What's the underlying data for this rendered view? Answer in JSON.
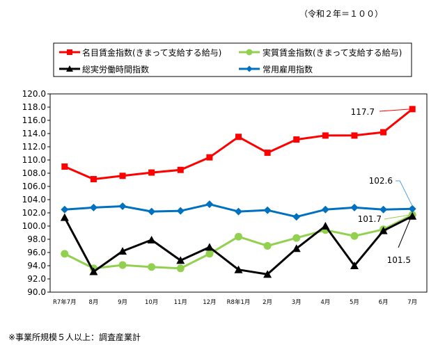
{
  "header": {
    "unit_note": "（令和２年＝１００）"
  },
  "footer": {
    "source_note": "※事業所規模５人以上：調査産業計"
  },
  "chart_data": {
    "type": "line",
    "categories": [
      "R7年7月",
      "8月",
      "9月",
      "10月",
      "11月",
      "12月",
      "R8年1月",
      "2月",
      "3月",
      "4月",
      "5月",
      "6月",
      "7月"
    ],
    "ylim": [
      90.0,
      120.0
    ],
    "ytick_step": 2.0,
    "ytick_labels": [
      "90.0",
      "92.0",
      "94.0",
      "96.0",
      "98.0",
      "100.0",
      "102.0",
      "104.0",
      "106.0",
      "108.0",
      "110.0",
      "112.0",
      "114.0",
      "116.0",
      "118.0",
      "120.0"
    ],
    "grid": false,
    "legend_position": "top",
    "series": [
      {
        "name": "名目賃金指数(きまって支給する給与)",
        "color": "#ff0000",
        "marker": "square",
        "values": [
          109.0,
          107.1,
          107.6,
          108.1,
          108.5,
          110.4,
          113.5,
          111.1,
          113.1,
          113.7,
          113.7,
          114.2,
          117.7
        ]
      },
      {
        "name": "実質賃金指数(きまって支給する給与)",
        "color": "#92d050",
        "marker": "circle",
        "values": [
          95.8,
          93.6,
          94.1,
          93.8,
          93.6,
          95.8,
          98.4,
          97.0,
          98.2,
          99.4,
          98.5,
          99.5,
          101.7
        ]
      },
      {
        "name": "総実労働時間指数",
        "color": "#000000",
        "marker": "triangle",
        "values": [
          101.3,
          93.1,
          96.2,
          97.9,
          94.8,
          96.8,
          93.4,
          92.7,
          96.6,
          100.0,
          94.0,
          99.3,
          101.5
        ]
      },
      {
        "name": "常用雇用指数",
        "color": "#0070c0",
        "marker": "diamond",
        "values": [
          102.5,
          102.8,
          103.0,
          102.2,
          102.3,
          103.3,
          102.2,
          102.4,
          101.4,
          102.5,
          102.8,
          102.5,
          102.6
        ]
      }
    ],
    "annotations": [
      {
        "text": "117.7",
        "series": 0,
        "color": "#ff0000"
      },
      {
        "text": "102.6",
        "series": 3,
        "color": "#4f9fde"
      },
      {
        "text": "101.7",
        "series": 1,
        "color": "#92d050"
      },
      {
        "text": "101.5",
        "series": 2,
        "color": "#000000"
      }
    ]
  }
}
